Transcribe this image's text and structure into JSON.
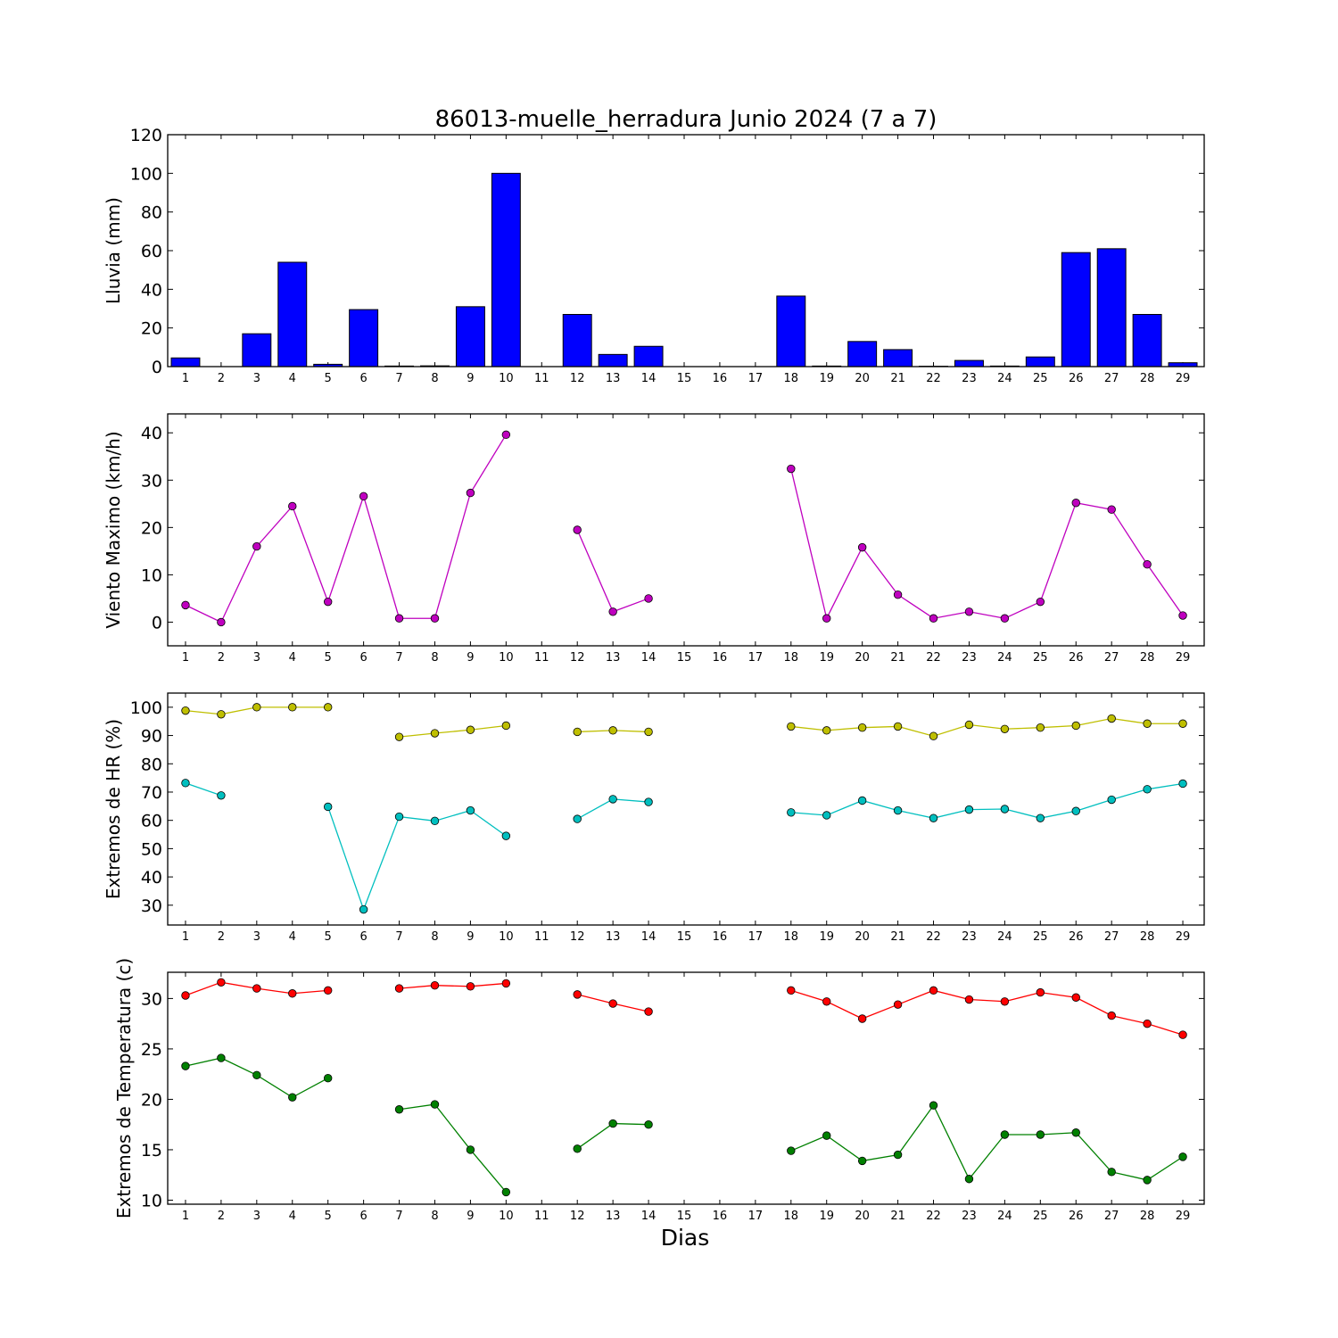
{
  "title": "86013-muelle_herradura Junio 2024  (7 a 7)",
  "xlabel": "Dias",
  "chart_data": [
    {
      "type": "bar",
      "ylabel": "Lluvia (mm)",
      "ylim": [
        0,
        120
      ],
      "yticks": [
        0,
        20,
        40,
        60,
        80,
        100,
        120
      ],
      "categories": [
        "1",
        "2",
        "3",
        "4",
        "5",
        "6",
        "7",
        "8",
        "9",
        "10",
        "11",
        "12",
        "13",
        "14",
        "15",
        "16",
        "17",
        "18",
        "19",
        "20",
        "21",
        "22",
        "23",
        "24",
        "25",
        "26",
        "27",
        "28",
        "29"
      ],
      "series": [
        {
          "color": "#0000ff",
          "values": [
            4.5,
            0,
            17,
            54,
            1.2,
            29.5,
            0.3,
            0.4,
            31,
            100,
            0,
            27,
            6.3,
            10.5,
            0,
            0,
            0,
            36.5,
            0.3,
            13,
            8.8,
            0.2,
            3.2,
            0.3,
            5,
            59,
            61,
            27,
            2
          ]
        }
      ]
    },
    {
      "type": "line",
      "ylabel": "Viento Maximo (km/h)",
      "ylim": [
        -5,
        44
      ],
      "yticks": [
        0,
        10,
        20,
        30,
        40
      ],
      "categories": [
        "1",
        "2",
        "3",
        "4",
        "5",
        "6",
        "7",
        "8",
        "9",
        "10",
        "11",
        "12",
        "13",
        "14",
        "15",
        "16",
        "17",
        "18",
        "19",
        "20",
        "21",
        "22",
        "23",
        "24",
        "25",
        "26",
        "27",
        "28",
        "29"
      ],
      "series": [
        {
          "color": "#bf00bf",
          "values": [
            3.6,
            0,
            16,
            24.5,
            4.3,
            26.6,
            0.8,
            0.8,
            27.3,
            39.6,
            null,
            19.5,
            2.2,
            5,
            null,
            null,
            null,
            32.4,
            0.8,
            15.8,
            5.8,
            0.8,
            2.2,
            0.8,
            4.3,
            25.2,
            23.8,
            12.2,
            1.4
          ]
        }
      ]
    },
    {
      "type": "line",
      "ylabel": "Extremos de HR (%)",
      "ylim": [
        23,
        105
      ],
      "yticks": [
        30,
        40,
        50,
        60,
        70,
        80,
        90,
        100
      ],
      "categories": [
        "1",
        "2",
        "3",
        "4",
        "5",
        "6",
        "7",
        "8",
        "9",
        "10",
        "11",
        "12",
        "13",
        "14",
        "15",
        "16",
        "17",
        "18",
        "19",
        "20",
        "21",
        "22",
        "23",
        "24",
        "25",
        "26",
        "27",
        "28",
        "29"
      ],
      "series": [
        {
          "color": "#bfbf00",
          "values": [
            98.8,
            97.5,
            100,
            100,
            100,
            null,
            89.5,
            90.8,
            92,
            93.5,
            null,
            91.3,
            91.8,
            91.3,
            null,
            null,
            null,
            93.2,
            91.8,
            92.8,
            93.2,
            89.8,
            93.8,
            92.3,
            92.8,
            93.5,
            96,
            94.2,
            94.2
          ]
        },
        {
          "color": "#00bfbf",
          "values": [
            73.2,
            68.8,
            null,
            null,
            64.8,
            28.5,
            61.3,
            59.8,
            63.5,
            54.5,
            null,
            60.5,
            67.5,
            66.5,
            null,
            null,
            null,
            62.8,
            61.8,
            67,
            63.5,
            60.8,
            63.8,
            64,
            60.8,
            63.3,
            67.3,
            71,
            73
          ]
        }
      ]
    },
    {
      "type": "line",
      "ylabel": "Extremos de Temperatura (c)",
      "ylim": [
        9.6,
        32.6
      ],
      "yticks": [
        10,
        15,
        20,
        25,
        30
      ],
      "categories": [
        "1",
        "2",
        "3",
        "4",
        "5",
        "6",
        "7",
        "8",
        "9",
        "10",
        "11",
        "12",
        "13",
        "14",
        "15",
        "16",
        "17",
        "18",
        "19",
        "20",
        "21",
        "22",
        "23",
        "24",
        "25",
        "26",
        "27",
        "28",
        "29"
      ],
      "series": [
        {
          "color": "#ff0000",
          "values": [
            30.3,
            31.6,
            31,
            30.5,
            30.8,
            null,
            31,
            31.3,
            31.2,
            31.5,
            null,
            30.4,
            29.5,
            28.7,
            null,
            null,
            null,
            30.8,
            29.7,
            28,
            29.4,
            30.8,
            29.9,
            29.7,
            30.6,
            30.1,
            28.3,
            27.5,
            26.4
          ]
        },
        {
          "color": "#008000",
          "values": [
            23.3,
            24.1,
            22.4,
            20.2,
            22.1,
            null,
            19,
            19.5,
            15,
            10.8,
            null,
            15.1,
            17.6,
            17.5,
            null,
            null,
            null,
            14.9,
            16.4,
            13.9,
            14.5,
            19.4,
            12.1,
            16.5,
            16.5,
            16.7,
            12.8,
            12,
            14.3
          ]
        }
      ]
    }
  ]
}
